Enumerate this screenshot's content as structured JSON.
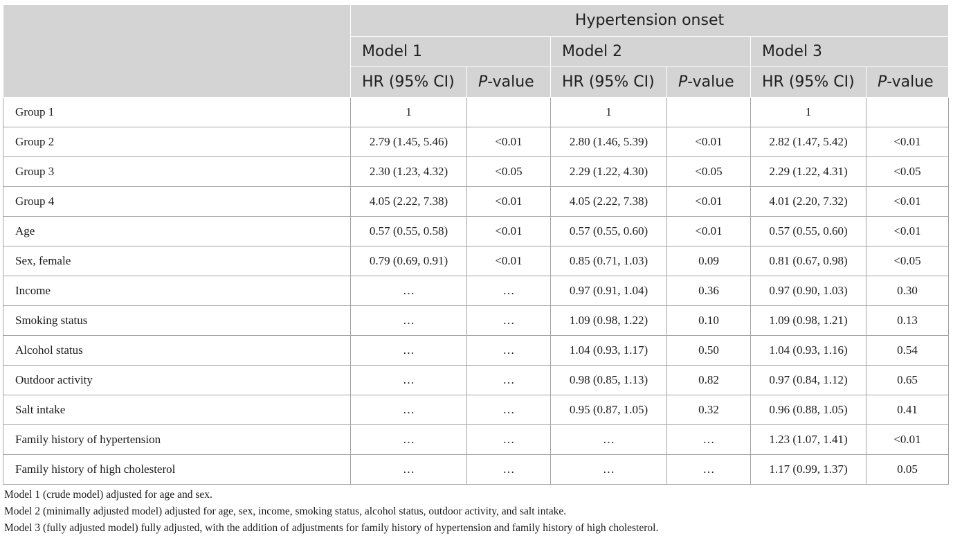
{
  "table": {
    "group_header": "Hypertension onset",
    "models": [
      "Model 1",
      "Model 2",
      "Model 3"
    ],
    "hr_label": "HR (95% CI)",
    "p_italic": "P",
    "p_suffix": "-value",
    "rows": [
      {
        "label": "Group 1",
        "m1_hr": "1",
        "m1_p": "",
        "m2_hr": "1",
        "m2_p": "",
        "m3_hr": "1",
        "m3_p": ""
      },
      {
        "label": "Group 2",
        "m1_hr": "2.79 (1.45, 5.46)",
        "m1_p": "<0.01",
        "m2_hr": "2.80 (1.46, 5.39)",
        "m2_p": "<0.01",
        "m3_hr": "2.82 (1.47, 5.42)",
        "m3_p": "<0.01"
      },
      {
        "label": "Group 3",
        "m1_hr": "2.30 (1.23, 4.32)",
        "m1_p": "<0.05",
        "m2_hr": "2.29 (1.22, 4.30)",
        "m2_p": "<0.05",
        "m3_hr": "2.29 (1.22, 4.31)",
        "m3_p": "<0.05"
      },
      {
        "label": "Group 4",
        "m1_hr": "4.05 (2.22, 7.38)",
        "m1_p": "<0.01",
        "m2_hr": "4.05 (2.22, 7.38)",
        "m2_p": "<0.01",
        "m3_hr": "4.01 (2.20, 7.32)",
        "m3_p": "<0.01"
      },
      {
        "label": "Age",
        "m1_hr": "0.57 (0.55, 0.58)",
        "m1_p": "<0.01",
        "m2_hr": "0.57 (0.55, 0.60)",
        "m2_p": "<0.01",
        "m3_hr": "0.57 (0.55, 0.60)",
        "m3_p": "<0.01"
      },
      {
        "label": "Sex, female",
        "m1_hr": "0.79 (0.69, 0.91)",
        "m1_p": "<0.01",
        "m2_hr": "0.85 (0.71, 1.03)",
        "m2_p": "0.09",
        "m3_hr": "0.81 (0.67, 0.98)",
        "m3_p": "<0.05"
      },
      {
        "label": "Income",
        "m1_hr": "…",
        "m1_p": "…",
        "m2_hr": "0.97 (0.91, 1.04)",
        "m2_p": "0.36",
        "m3_hr": "0.97 (0.90, 1.03)",
        "m3_p": "0.30"
      },
      {
        "label": "Smoking status",
        "m1_hr": "…",
        "m1_p": "…",
        "m2_hr": "1.09 (0.98, 1.22)",
        "m2_p": "0.10",
        "m3_hr": "1.09 (0.98, 1.21)",
        "m3_p": "0.13"
      },
      {
        "label": "Alcohol status",
        "m1_hr": "…",
        "m1_p": "…",
        "m2_hr": "1.04 (0.93, 1.17)",
        "m2_p": "0.50",
        "m3_hr": "1.04 (0.93, 1.16)",
        "m3_p": "0.54"
      },
      {
        "label": "Outdoor activity",
        "m1_hr": "…",
        "m1_p": "…",
        "m2_hr": "0.98 (0.85, 1.13)",
        "m2_p": "0.82",
        "m3_hr": "0.97 (0.84, 1.12)",
        "m3_p": "0.65"
      },
      {
        "label": "Salt intake",
        "m1_hr": "…",
        "m1_p": "…",
        "m2_hr": "0.95 (0.87, 1.05)",
        "m2_p": "0.32",
        "m3_hr": "0.96 (0.88, 1.05)",
        "m3_p": "0.41"
      },
      {
        "label": "Family history of hypertension",
        "m1_hr": "…",
        "m1_p": "…",
        "m2_hr": "…",
        "m2_p": "…",
        "m3_hr": "1.23 (1.07, 1.41)",
        "m3_p": "<0.01"
      },
      {
        "label": "Family history of high cholesterol",
        "m1_hr": "…",
        "m1_p": "…",
        "m2_hr": "…",
        "m2_p": "…",
        "m3_hr": "1.17 (0.99, 1.37)",
        "m3_p": "0.05"
      }
    ]
  },
  "footnotes": [
    "Model 1 (crude model) adjusted for age and sex.",
    "Model 2 (minimally adjusted model) adjusted for age, sex, income, smoking status, alcohol status, outdoor activity, and salt intake.",
    "Model 3 (fully adjusted model) fully adjusted, with the addition of adjustments for family history of hypertension and family history of high cholesterol."
  ]
}
